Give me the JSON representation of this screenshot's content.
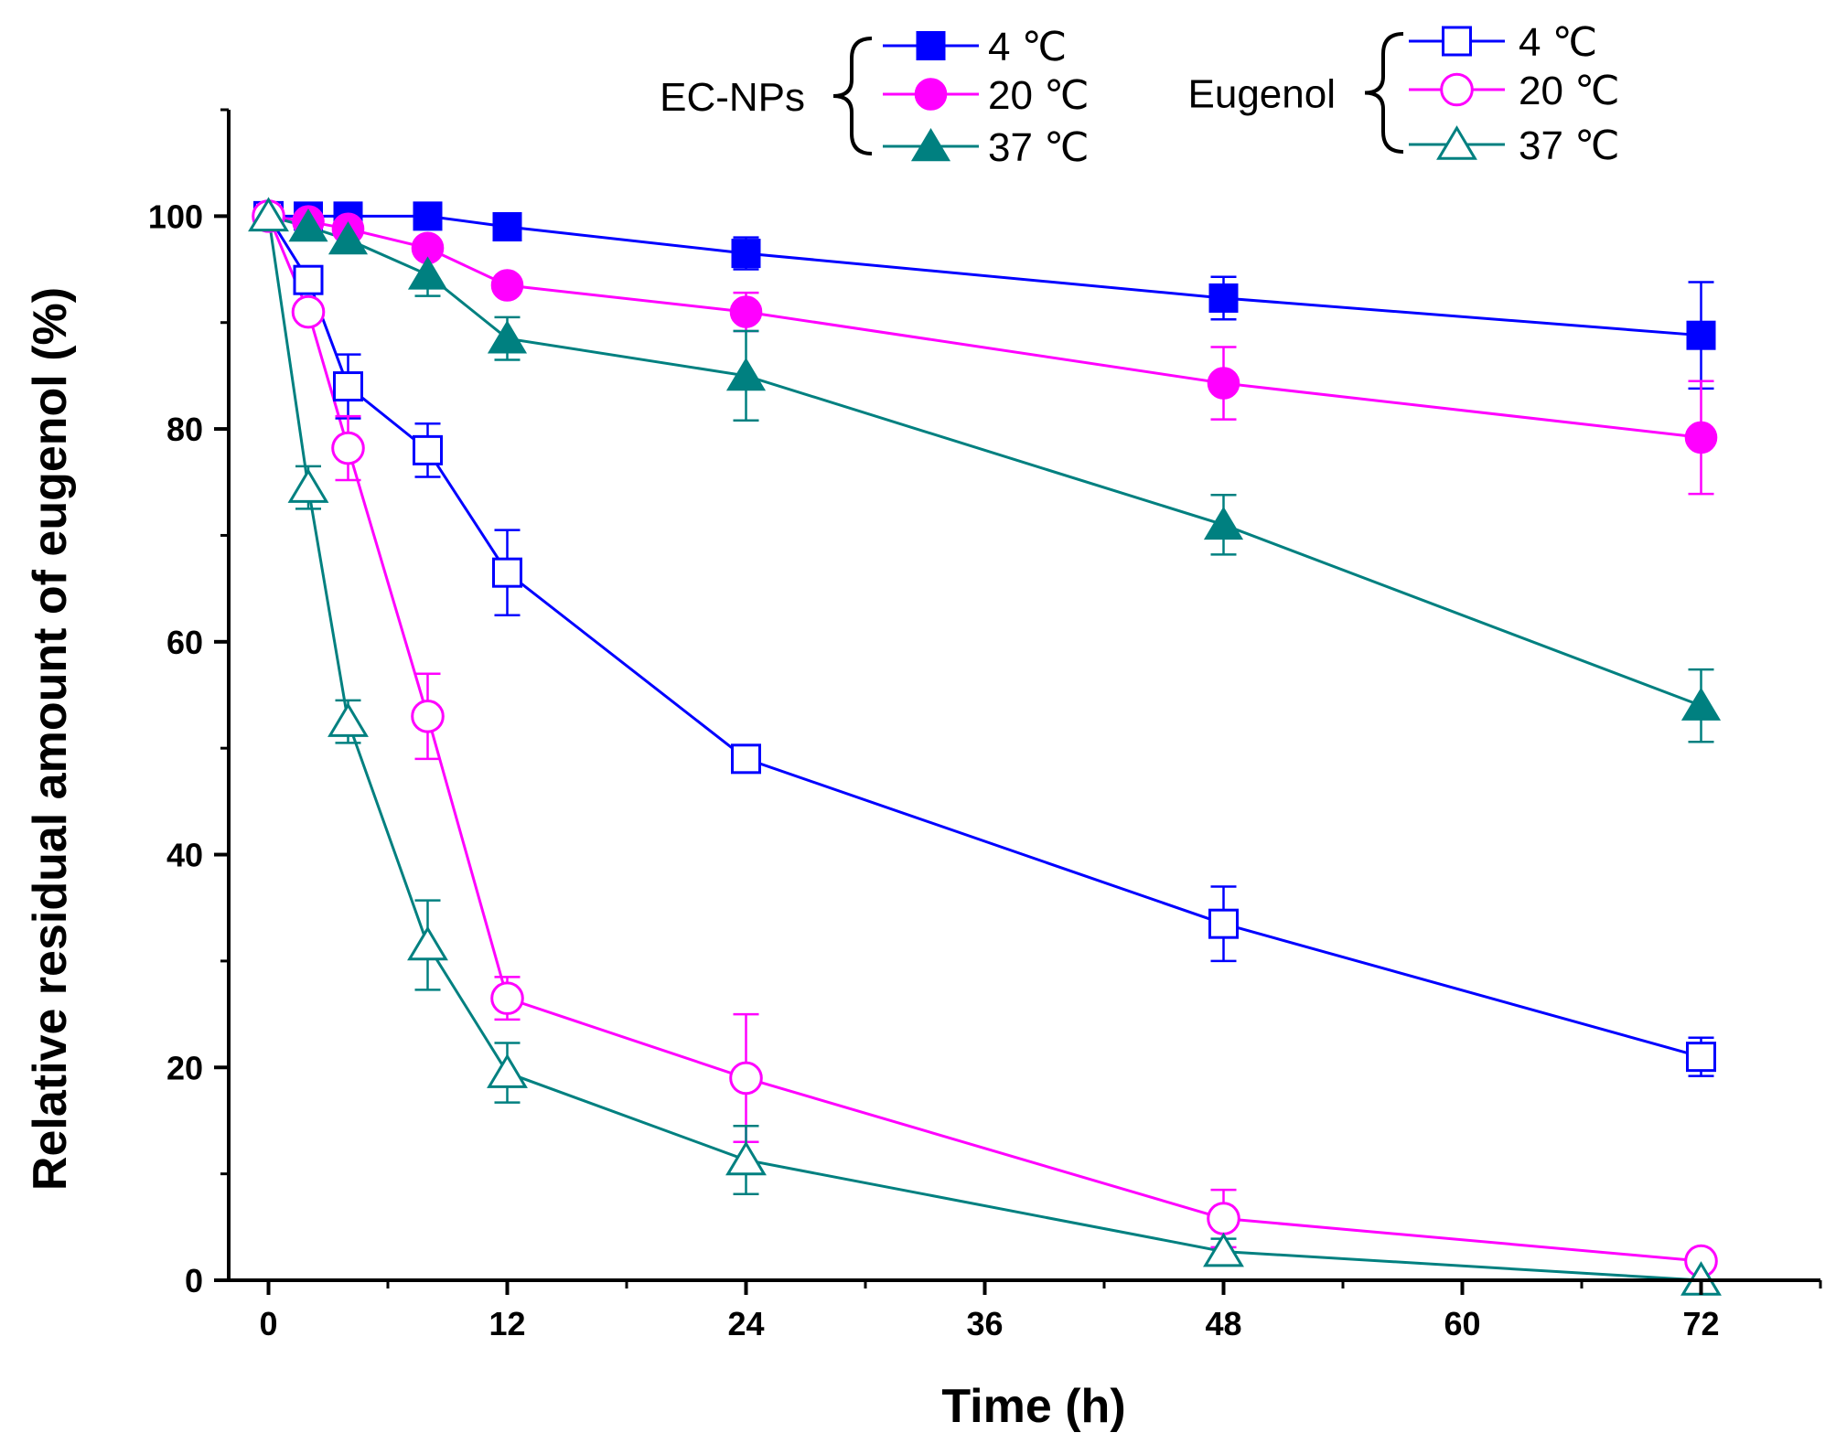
{
  "chart_data": {
    "type": "line",
    "title": "",
    "xlabel": "Time (h)",
    "ylabel": "Relative residual amount of eugenol (%)",
    "xlim": [
      -2,
      78
    ],
    "ylim": [
      0,
      110
    ],
    "xticks": [
      0,
      12,
      24,
      36,
      48,
      60,
      72
    ],
    "xtick_labels": [
      "0",
      "12",
      "24",
      "36",
      "48",
      "60",
      "72"
    ],
    "yticks": [
      0,
      20,
      40,
      60,
      80,
      100
    ],
    "ytick_labels": [
      "0",
      "20",
      "40",
      "60",
      "80",
      "100"
    ],
    "x": [
      0,
      2,
      4,
      8,
      12,
      24,
      48,
      72
    ],
    "legend": {
      "placement": "top",
      "groups": [
        {
          "label": "EC-NPs",
          "entries": [
            "4 ℃",
            "20 ℃",
            "37 ℃"
          ]
        },
        {
          "label": "Eugenol",
          "entries": [
            "4 ℃",
            "20 ℃",
            "37 ℃"
          ]
        }
      ]
    },
    "series": [
      {
        "name": "EC-NPs 4 ℃",
        "group": "EC-NPs",
        "color": "#0000FF",
        "marker": "square",
        "filled": true,
        "values": [
          100,
          100,
          100,
          100,
          99,
          96.5,
          92.3,
          88.8
        ],
        "errors": [
          0,
          0,
          0,
          0,
          0,
          1.5,
          2,
          5
        ]
      },
      {
        "name": "EC-NPs 20 ℃",
        "group": "EC-NPs",
        "color": "#FF00FF",
        "marker": "circle",
        "filled": true,
        "values": [
          100,
          99.5,
          98.8,
          97,
          93.5,
          91,
          84.3,
          79.2
        ],
        "errors": [
          0,
          0,
          0,
          0,
          0,
          1.8,
          3.4,
          5.3
        ]
      },
      {
        "name": "EC-NPs 37 ℃",
        "group": "EC-NPs",
        "color": "#008080",
        "marker": "triangle",
        "filled": true,
        "values": [
          100,
          99,
          97.8,
          94.5,
          88.5,
          85,
          71,
          54
        ],
        "errors": [
          0,
          1,
          1,
          2,
          2,
          4.2,
          2.8,
          3.4
        ]
      },
      {
        "name": "Eugenol 4 ℃",
        "group": "Eugenol",
        "color": "#0000FF",
        "marker": "square",
        "filled": false,
        "values": [
          100,
          94,
          84,
          78,
          66.5,
          49,
          33.5,
          21
        ],
        "errors": [
          0,
          1,
          3,
          2.5,
          4,
          0.8,
          3.5,
          1.8
        ]
      },
      {
        "name": "Eugenol 20 ℃",
        "group": "Eugenol",
        "color": "#FF00FF",
        "marker": "circle",
        "filled": false,
        "values": [
          100,
          91,
          78.2,
          53,
          26.5,
          19,
          5.8,
          1.8
        ],
        "errors": [
          0,
          0,
          3,
          4,
          2,
          6,
          2.7,
          0
        ]
      },
      {
        "name": "Eugenol 37 ℃",
        "group": "Eugenol",
        "color": "#008080",
        "marker": "triangle",
        "filled": false,
        "values": [
          100,
          74.5,
          52.5,
          31.5,
          19.5,
          11.3,
          2.7,
          0
        ],
        "errors": [
          0,
          2,
          2,
          4.2,
          2.8,
          3.2,
          1.2,
          0
        ]
      }
    ]
  }
}
